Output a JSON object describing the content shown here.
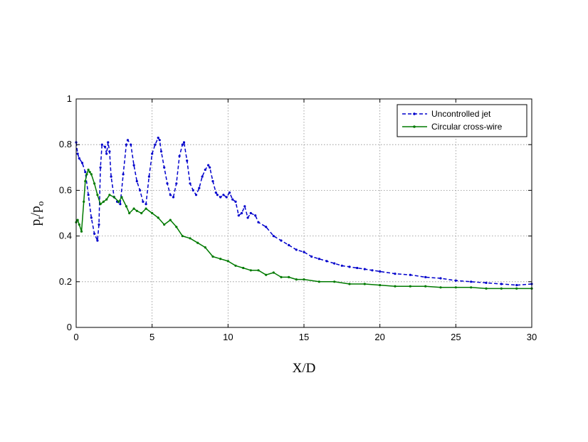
{
  "chart_data": {
    "type": "line",
    "xlabel": "X/D",
    "ylabel": {
      "main": "p",
      "sub1": "t",
      "sep": "/p",
      "sub2": "o"
    },
    "xlim": [
      0,
      30
    ],
    "ylim": [
      0,
      1
    ],
    "xticks": [
      0,
      5,
      10,
      15,
      20,
      25,
      30
    ],
    "yticks": [
      0,
      0.2,
      0.4,
      0.6,
      0.8,
      1
    ],
    "xtick_labels": [
      "0",
      "5",
      "10",
      "15",
      "20",
      "25",
      "30"
    ],
    "ytick_labels": [
      "0",
      "0.2",
      "0.4",
      "0.6",
      "0.8",
      "1"
    ],
    "grid": true,
    "legend_position": "top-right",
    "series": [
      {
        "name": "Uncontrolled jet",
        "color": "#0000cc",
        "line_style": "dashed",
        "marker": "dot",
        "x": [
          0,
          0.1,
          0.2,
          0.4,
          0.6,
          0.8,
          1.0,
          1.2,
          1.4,
          1.5,
          1.6,
          1.7,
          1.9,
          2.0,
          2.1,
          2.2,
          2.3,
          2.5,
          2.7,
          2.9,
          3.1,
          3.3,
          3.4,
          3.6,
          3.8,
          4.0,
          4.2,
          4.4,
          4.6,
          4.8,
          5.0,
          5.2,
          5.4,
          5.5,
          5.6,
          5.8,
          6.0,
          6.2,
          6.4,
          6.6,
          6.8,
          7.0,
          7.1,
          7.3,
          7.5,
          7.7,
          7.9,
          8.1,
          8.3,
          8.5,
          8.7,
          8.8,
          9.0,
          9.2,
          9.3,
          9.5,
          9.7,
          9.9,
          10.1,
          10.3,
          10.5,
          10.7,
          10.9,
          11.1,
          11.3,
          11.5,
          11.8,
          12.0,
          12.5,
          13.0,
          13.5,
          14.0,
          14.5,
          15.0,
          15.5,
          16.0,
          16.5,
          17.0,
          17.5,
          18.0,
          18.5,
          19.0,
          19.5,
          20.0,
          21.0,
          22.0,
          23.0,
          24.0,
          25.0,
          26.0,
          27.0,
          28.0,
          29.0,
          30.0
        ],
        "y": [
          0.81,
          0.76,
          0.74,
          0.72,
          0.68,
          0.58,
          0.48,
          0.41,
          0.38,
          0.45,
          0.7,
          0.8,
          0.79,
          0.76,
          0.81,
          0.77,
          0.66,
          0.57,
          0.55,
          0.54,
          0.67,
          0.8,
          0.82,
          0.8,
          0.71,
          0.64,
          0.6,
          0.55,
          0.54,
          0.66,
          0.76,
          0.8,
          0.83,
          0.82,
          0.77,
          0.7,
          0.63,
          0.58,
          0.57,
          0.63,
          0.75,
          0.8,
          0.81,
          0.73,
          0.63,
          0.6,
          0.58,
          0.61,
          0.66,
          0.69,
          0.71,
          0.7,
          0.64,
          0.59,
          0.58,
          0.57,
          0.58,
          0.57,
          0.59,
          0.56,
          0.55,
          0.49,
          0.5,
          0.53,
          0.48,
          0.5,
          0.49,
          0.46,
          0.44,
          0.4,
          0.38,
          0.36,
          0.34,
          0.33,
          0.31,
          0.3,
          0.29,
          0.28,
          0.27,
          0.265,
          0.26,
          0.255,
          0.25,
          0.245,
          0.235,
          0.23,
          0.22,
          0.215,
          0.205,
          0.2,
          0.195,
          0.19,
          0.185,
          0.19
        ]
      },
      {
        "name": "Circular cross-wire",
        "color": "#007a00",
        "line_style": "solid",
        "marker": "dot",
        "x": [
          0,
          0.1,
          0.2,
          0.35,
          0.5,
          0.6,
          0.7,
          0.8,
          0.9,
          1.0,
          1.2,
          1.4,
          1.6,
          1.8,
          2.0,
          2.2,
          2.5,
          2.8,
          3.0,
          3.3,
          3.5,
          3.8,
          4.0,
          4.3,
          4.6,
          5.0,
          5.4,
          5.8,
          6.2,
          6.6,
          7.0,
          7.5,
          8.0,
          8.5,
          9.0,
          9.5,
          10.0,
          10.5,
          11.0,
          11.5,
          12.0,
          12.5,
          13.0,
          13.5,
          14.0,
          14.5,
          15.0,
          16.0,
          17.0,
          18.0,
          19.0,
          20.0,
          21.0,
          22.0,
          23.0,
          24.0,
          25.0,
          26.0,
          27.0,
          28.0,
          29.0,
          30.0
        ],
        "y": [
          0.46,
          0.47,
          0.45,
          0.42,
          0.55,
          0.64,
          0.67,
          0.69,
          0.68,
          0.67,
          0.63,
          0.58,
          0.54,
          0.55,
          0.56,
          0.58,
          0.57,
          0.55,
          0.57,
          0.53,
          0.5,
          0.52,
          0.51,
          0.5,
          0.52,
          0.5,
          0.48,
          0.45,
          0.47,
          0.44,
          0.4,
          0.39,
          0.37,
          0.35,
          0.31,
          0.3,
          0.29,
          0.27,
          0.26,
          0.25,
          0.25,
          0.23,
          0.24,
          0.22,
          0.22,
          0.21,
          0.21,
          0.2,
          0.2,
          0.19,
          0.19,
          0.185,
          0.18,
          0.18,
          0.18,
          0.175,
          0.175,
          0.175,
          0.17,
          0.17,
          0.17,
          0.17
        ]
      }
    ]
  }
}
